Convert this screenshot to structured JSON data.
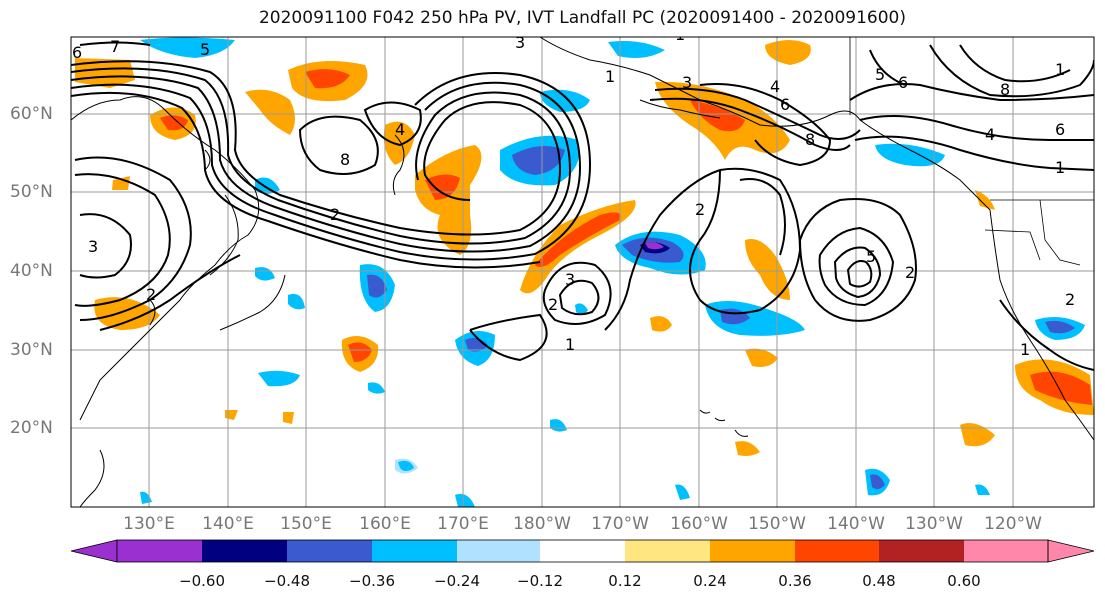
{
  "title": "2020091100 F042 250 hPa PV, IVT Landfall PC (2020091400 - 2020091600)",
  "lat_labels": [
    "60°N",
    "50°N",
    "40°N",
    "30°N",
    "20°N"
  ],
  "lon_labels": [
    "130°E",
    "140°E",
    "150°E",
    "160°E",
    "170°E",
    "180°W",
    "170°W",
    "160°W",
    "150°W",
    "140°W",
    "130°W",
    "120°W"
  ],
  "colorbar": {
    "ticks": [
      "−0.60",
      "−0.48",
      "−0.36",
      "−0.24",
      "−0.12",
      "0.12",
      "0.24",
      "0.36",
      "0.48",
      "0.60"
    ],
    "colors": [
      "#9b30d0",
      "#000080",
      "#3a5bd0",
      "#00bfff",
      "#b0e2ff",
      "#ffffff",
      "#ffe680",
      "#ffa500",
      "#ff4500",
      "#b22222",
      "#ff88aa"
    ]
  },
  "contour_labels": [
    "7",
    "5",
    "3",
    "8",
    "6",
    "4",
    "1",
    "2",
    "3",
    "2",
    "3",
    "2",
    "1",
    "4",
    "6",
    "8",
    "5",
    "6",
    "1",
    "8",
    "6",
    "4",
    "1",
    "2",
    "1",
    "2",
    "5",
    "3",
    "1",
    "2"
  ]
}
